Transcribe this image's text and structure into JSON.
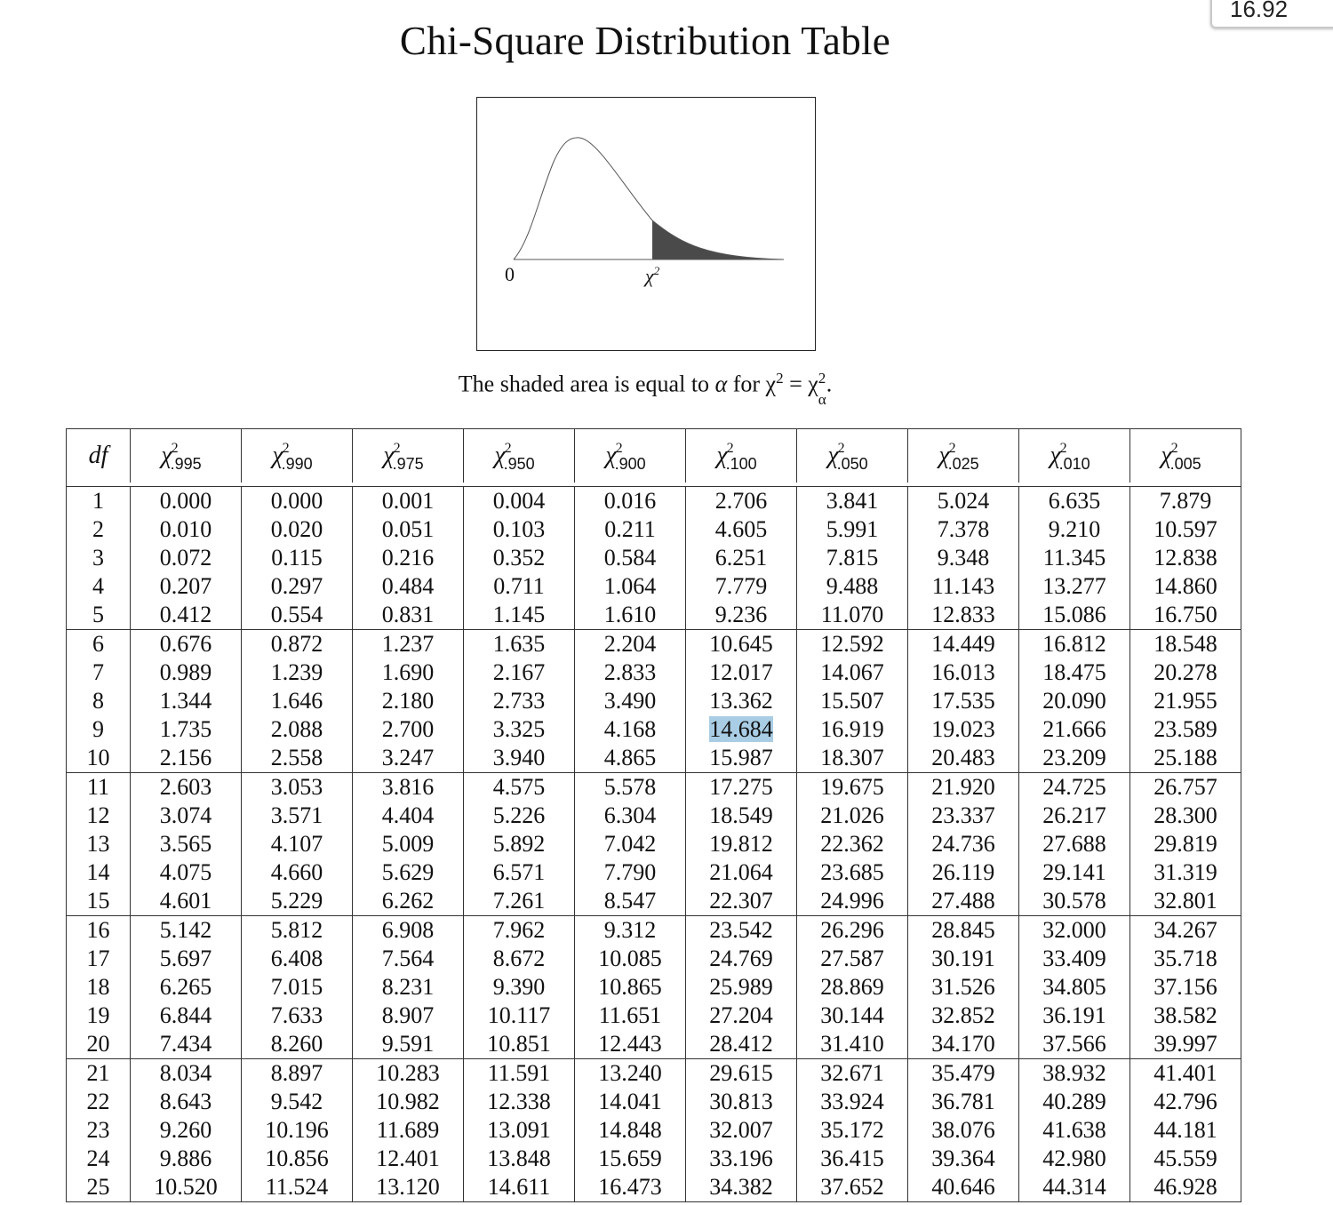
{
  "search": {
    "value": "16.92"
  },
  "title": "Chi-Square Distribution Table",
  "figure": {
    "origin_label": "0",
    "chi_label": "χ",
    "chi_label_sup": "2"
  },
  "caption": {
    "pre": "The shaded area is equal to ",
    "alpha": "α",
    "mid": " for χ",
    "sup": "2",
    "eq": " = χ",
    "sub": "α",
    "sup2": "2",
    "end": "."
  },
  "table": {
    "df_header": "df",
    "chi_symbol": "χ",
    "chi_power": "2",
    "columns": [
      ".995",
      ".990",
      ".975",
      ".950",
      ".900",
      ".100",
      ".050",
      ".025",
      ".010",
      ".005"
    ],
    "highlight": {
      "row": 8,
      "col": 6
    },
    "rows": [
      [
        "1",
        "0.000",
        "0.000",
        "0.001",
        "0.004",
        "0.016",
        "2.706",
        "3.841",
        "5.024",
        "6.635",
        "7.879"
      ],
      [
        "2",
        "0.010",
        "0.020",
        "0.051",
        "0.103",
        "0.211",
        "4.605",
        "5.991",
        "7.378",
        "9.210",
        "10.597"
      ],
      [
        "3",
        "0.072",
        "0.115",
        "0.216",
        "0.352",
        "0.584",
        "6.251",
        "7.815",
        "9.348",
        "11.345",
        "12.838"
      ],
      [
        "4",
        "0.207",
        "0.297",
        "0.484",
        "0.711",
        "1.064",
        "7.779",
        "9.488",
        "11.143",
        "13.277",
        "14.860"
      ],
      [
        "5",
        "0.412",
        "0.554",
        "0.831",
        "1.145",
        "1.610",
        "9.236",
        "11.070",
        "12.833",
        "15.086",
        "16.750"
      ],
      [
        "6",
        "0.676",
        "0.872",
        "1.237",
        "1.635",
        "2.204",
        "10.645",
        "12.592",
        "14.449",
        "16.812",
        "18.548"
      ],
      [
        "7",
        "0.989",
        "1.239",
        "1.690",
        "2.167",
        "2.833",
        "12.017",
        "14.067",
        "16.013",
        "18.475",
        "20.278"
      ],
      [
        "8",
        "1.344",
        "1.646",
        "2.180",
        "2.733",
        "3.490",
        "13.362",
        "15.507",
        "17.535",
        "20.090",
        "21.955"
      ],
      [
        "9",
        "1.735",
        "2.088",
        "2.700",
        "3.325",
        "4.168",
        "14.684",
        "16.919",
        "19.023",
        "21.666",
        "23.589"
      ],
      [
        "10",
        "2.156",
        "2.558",
        "3.247",
        "3.940",
        "4.865",
        "15.987",
        "18.307",
        "20.483",
        "23.209",
        "25.188"
      ],
      [
        "11",
        "2.603",
        "3.053",
        "3.816",
        "4.575",
        "5.578",
        "17.275",
        "19.675",
        "21.920",
        "24.725",
        "26.757"
      ],
      [
        "12",
        "3.074",
        "3.571",
        "4.404",
        "5.226",
        "6.304",
        "18.549",
        "21.026",
        "23.337",
        "26.217",
        "28.300"
      ],
      [
        "13",
        "3.565",
        "4.107",
        "5.009",
        "5.892",
        "7.042",
        "19.812",
        "22.362",
        "24.736",
        "27.688",
        "29.819"
      ],
      [
        "14",
        "4.075",
        "4.660",
        "5.629",
        "6.571",
        "7.790",
        "21.064",
        "23.685",
        "26.119",
        "29.141",
        "31.319"
      ],
      [
        "15",
        "4.601",
        "5.229",
        "6.262",
        "7.261",
        "8.547",
        "22.307",
        "24.996",
        "27.488",
        "30.578",
        "32.801"
      ],
      [
        "16",
        "5.142",
        "5.812",
        "6.908",
        "7.962",
        "9.312",
        "23.542",
        "26.296",
        "28.845",
        "32.000",
        "34.267"
      ],
      [
        "17",
        "5.697",
        "6.408",
        "7.564",
        "8.672",
        "10.085",
        "24.769",
        "27.587",
        "30.191",
        "33.409",
        "35.718"
      ],
      [
        "18",
        "6.265",
        "7.015",
        "8.231",
        "9.390",
        "10.865",
        "25.989",
        "28.869",
        "31.526",
        "34.805",
        "37.156"
      ],
      [
        "19",
        "6.844",
        "7.633",
        "8.907",
        "10.117",
        "11.651",
        "27.204",
        "30.144",
        "32.852",
        "36.191",
        "38.582"
      ],
      [
        "20",
        "7.434",
        "8.260",
        "9.591",
        "10.851",
        "12.443",
        "28.412",
        "31.410",
        "34.170",
        "37.566",
        "39.997"
      ],
      [
        "21",
        "8.034",
        "8.897",
        "10.283",
        "11.591",
        "13.240",
        "29.615",
        "32.671",
        "35.479",
        "38.932",
        "41.401"
      ],
      [
        "22",
        "8.643",
        "9.542",
        "10.982",
        "12.338",
        "14.041",
        "30.813",
        "33.924",
        "36.781",
        "40.289",
        "42.796"
      ],
      [
        "23",
        "9.260",
        "10.196",
        "11.689",
        "13.091",
        "14.848",
        "32.007",
        "35.172",
        "38.076",
        "41.638",
        "44.181"
      ],
      [
        "24",
        "9.886",
        "10.856",
        "12.401",
        "13.848",
        "15.659",
        "33.196",
        "36.415",
        "39.364",
        "42.980",
        "45.559"
      ],
      [
        "25",
        "10.520",
        "11.524",
        "13.120",
        "14.611",
        "16.473",
        "34.382",
        "37.652",
        "40.646",
        "44.314",
        "46.928"
      ]
    ]
  }
}
